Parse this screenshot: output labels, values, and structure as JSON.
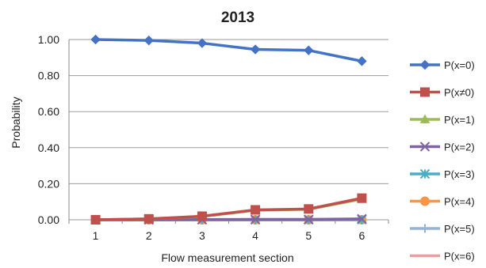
{
  "chart_data": {
    "type": "line",
    "title": "2013",
    "xlabel": "Flow measurement section",
    "ylabel": "Probability",
    "x": [
      "1",
      "2",
      "3",
      "4",
      "5",
      "6"
    ],
    "ylim": [
      0,
      1
    ],
    "yticks": [
      "0.00",
      "0.20",
      "0.40",
      "0.60",
      "0.80",
      "1.00"
    ],
    "grid": true,
    "legend_position": "right",
    "series": [
      {
        "name": "P(x=0)",
        "values": [
          1.0,
          0.995,
          0.98,
          0.945,
          0.94,
          0.88
        ],
        "color": "#4472C4",
        "marker": "diamond"
      },
      {
        "name": "P(x≠0)",
        "values": [
          0.0,
          0.005,
          0.02,
          0.055,
          0.06,
          0.12
        ],
        "color": "#C0504D",
        "marker": "square"
      },
      {
        "name": "P(x=1)",
        "values": [
          0.0,
          0.005,
          0.018,
          0.053,
          0.058,
          0.115
        ],
        "color": "#9BBB59",
        "marker": "triangle"
      },
      {
        "name": "P(x=2)",
        "values": [
          0.0,
          0.0,
          0.001,
          0.002,
          0.002,
          0.005
        ],
        "color": "#8064A2",
        "marker": "x"
      },
      {
        "name": "P(x=3)",
        "values": [
          0.0,
          0.0,
          0.0,
          0.0,
          0.0,
          0.001
        ],
        "color": "#4BACC6",
        "marker": "star"
      },
      {
        "name": "P(x=4)",
        "values": [
          0.0,
          0.0,
          0.0,
          0.0,
          0.0,
          0.0
        ],
        "color": "#F79646",
        "marker": "circle"
      },
      {
        "name": "P(x=5)",
        "values": [
          0.0,
          0.0,
          0.0,
          0.0,
          0.0,
          0.0
        ],
        "color": "#95B3D7",
        "marker": "plus"
      },
      {
        "name": "P(x=6)",
        "values": [
          0.0,
          0.0,
          0.0,
          0.0,
          0.0,
          0.0
        ],
        "color": "#E6A0A0",
        "marker": "none"
      }
    ]
  }
}
